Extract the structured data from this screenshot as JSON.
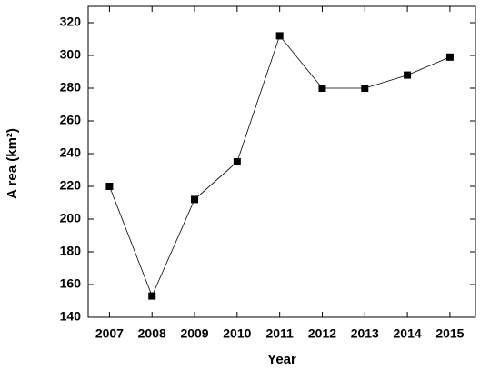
{
  "chart_data": {
    "type": "line",
    "x": [
      2007,
      2008,
      2009,
      2010,
      2011,
      2012,
      2013,
      2014,
      2015
    ],
    "series": [
      {
        "color": "#000000",
        "values": [
          220,
          153,
          212,
          235,
          312,
          280,
          280,
          288,
          299
        ]
      }
    ],
    "xlabel": "Year",
    "ylabel": "A rea (km²)",
    "xlim": [
      2006.5,
      2015.6
    ],
    "xticks": [
      2007,
      2008,
      2009,
      2010,
      2011,
      2012,
      2013,
      2014,
      2015
    ],
    "ylim": [
      140,
      330
    ],
    "yticks": [
      140,
      160,
      180,
      200,
      220,
      240,
      260,
      280,
      300,
      320
    ],
    "grid": false
  }
}
